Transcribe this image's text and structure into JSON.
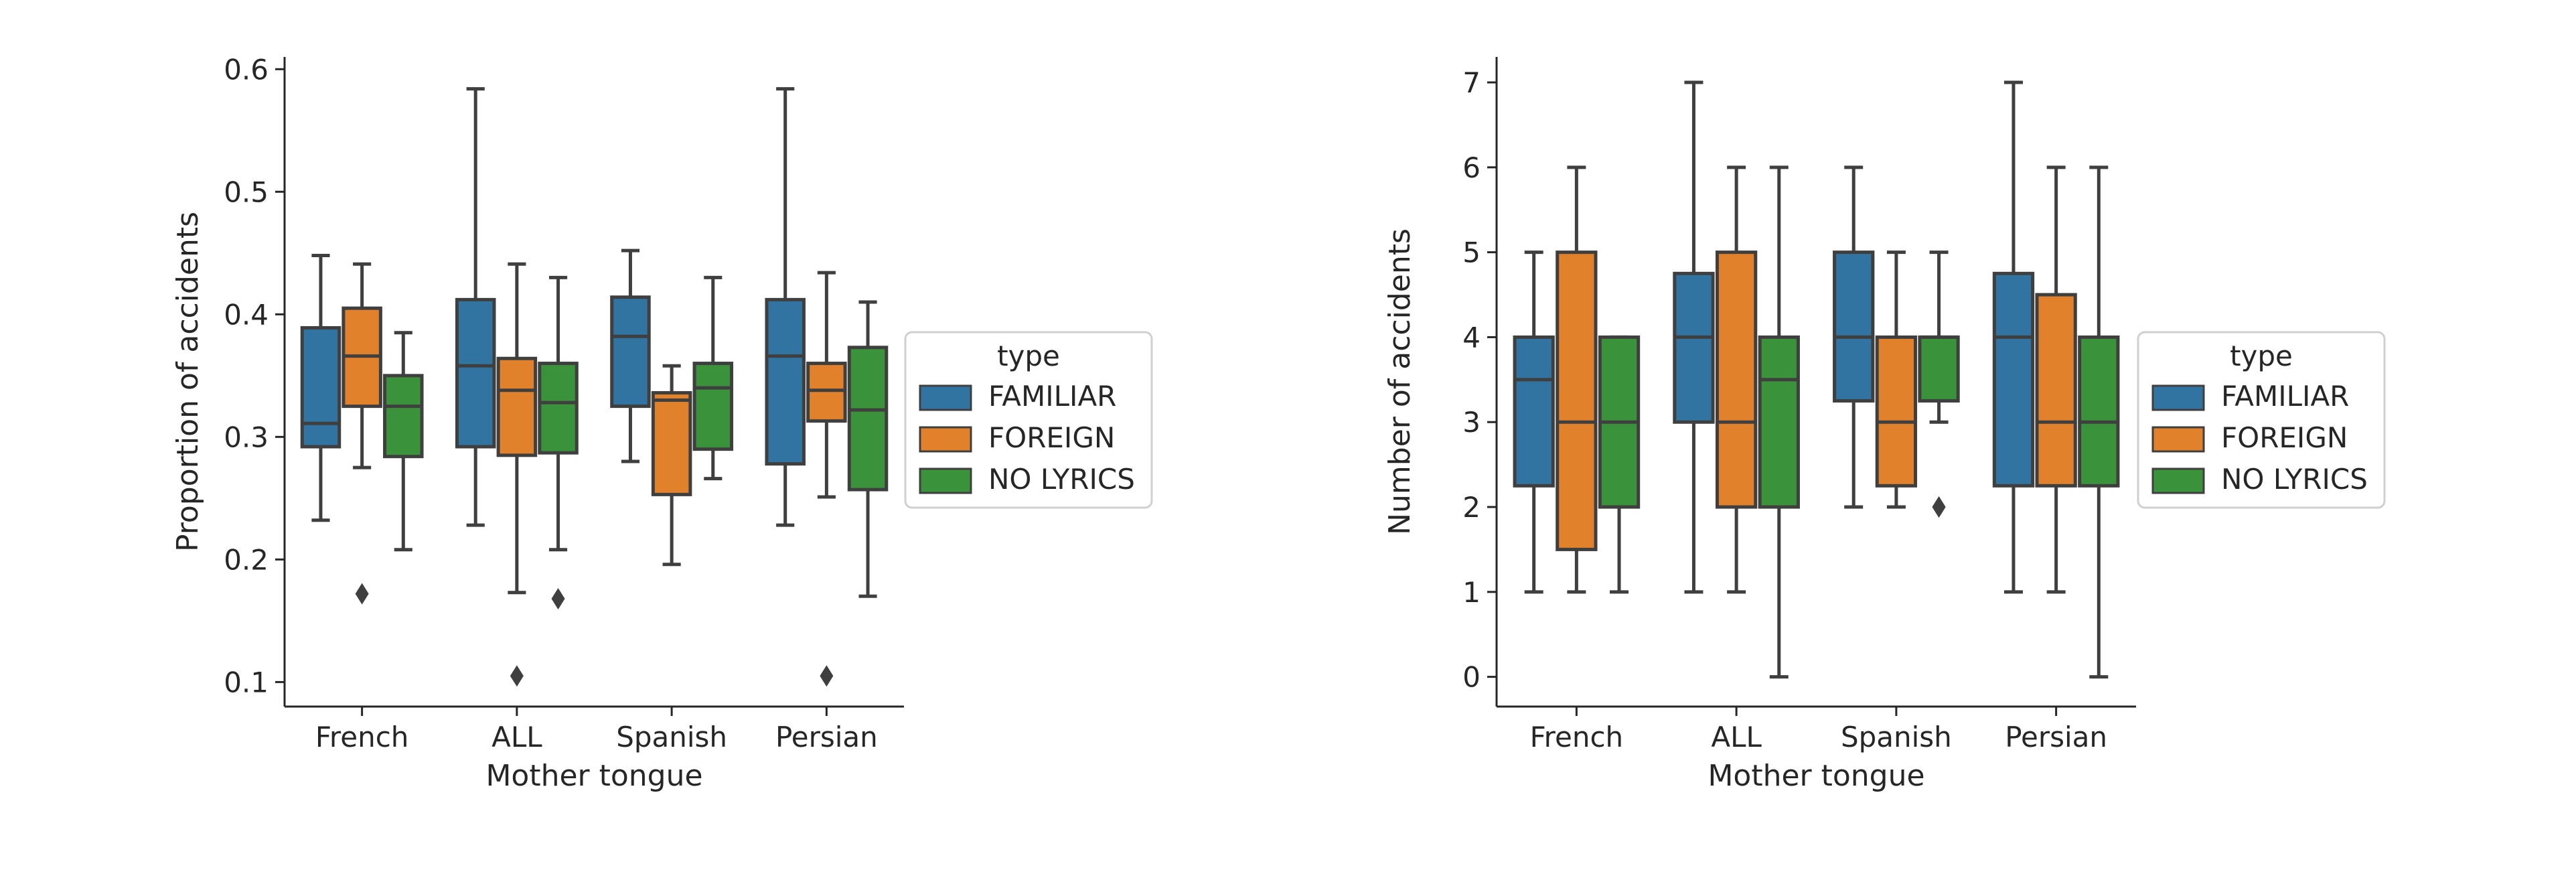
{
  "chart_data": [
    {
      "type": "box",
      "xlabel": "Mother tongue",
      "ylabel": "Proportion of accidents",
      "ylim": [
        0.08,
        0.61
      ],
      "yticks": [
        "0.1",
        "0.2",
        "0.3",
        "0.4",
        "0.5",
        "0.6"
      ],
      "ytick_values": [
        0.1,
        0.2,
        0.3,
        0.4,
        0.5,
        0.6
      ],
      "categories": [
        "French",
        "ALL",
        "Spanish",
        "Persian"
      ],
      "legend": {
        "title": "type",
        "position": "center-right"
      },
      "series": [
        {
          "name": "FAMILIAR",
          "color": "#3274a1",
          "boxes": [
            {
              "whislo": 0.232,
              "q1": 0.292,
              "med": 0.311,
              "q3": 0.389,
              "whishi": 0.448,
              "fliers": []
            },
            {
              "whislo": 0.228,
              "q1": 0.292,
              "med": 0.358,
              "q3": 0.412,
              "whishi": 0.584,
              "fliers": []
            },
            {
              "whislo": 0.28,
              "q1": 0.325,
              "med": 0.382,
              "q3": 0.414,
              "whishi": 0.452,
              "fliers": []
            },
            {
              "whislo": 0.228,
              "q1": 0.278,
              "med": 0.366,
              "q3": 0.412,
              "whishi": 0.584,
              "fliers": []
            }
          ]
        },
        {
          "name": "FOREIGN",
          "color": "#e1812c",
          "boxes": [
            {
              "whislo": 0.275,
              "q1": 0.325,
              "med": 0.366,
              "q3": 0.405,
              "whishi": 0.441,
              "fliers": [
                0.172
              ]
            },
            {
              "whislo": 0.173,
              "q1": 0.285,
              "med": 0.338,
              "q3": 0.364,
              "whishi": 0.441,
              "fliers": [
                0.105
              ]
            },
            {
              "whislo": 0.196,
              "q1": 0.253,
              "med": 0.33,
              "q3": 0.336,
              "whishi": 0.358,
              "fliers": []
            },
            {
              "whislo": 0.251,
              "q1": 0.313,
              "med": 0.338,
              "q3": 0.36,
              "whishi": 0.434,
              "fliers": [
                0.105
              ]
            }
          ]
        },
        {
          "name": "NO LYRICS",
          "color": "#3a923a",
          "boxes": [
            {
              "whislo": 0.208,
              "q1": 0.284,
              "med": 0.325,
              "q3": 0.35,
              "whishi": 0.385,
              "fliers": []
            },
            {
              "whislo": 0.208,
              "q1": 0.287,
              "med": 0.328,
              "q3": 0.36,
              "whishi": 0.43,
              "fliers": [
                0.168
              ]
            },
            {
              "whislo": 0.266,
              "q1": 0.29,
              "med": 0.34,
              "q3": 0.36,
              "whishi": 0.43,
              "fliers": []
            },
            {
              "whislo": 0.17,
              "q1": 0.257,
              "med": 0.322,
              "q3": 0.373,
              "whishi": 0.41,
              "fliers": []
            }
          ]
        }
      ]
    },
    {
      "type": "box",
      "xlabel": "Mother tongue",
      "ylabel": "Number of accidents",
      "ylim": [
        -0.35,
        7.3
      ],
      "yticks": [
        "0",
        "1",
        "2",
        "3",
        "4",
        "5",
        "6",
        "7"
      ],
      "ytick_values": [
        0,
        1,
        2,
        3,
        4,
        5,
        6,
        7
      ],
      "categories": [
        "French",
        "ALL",
        "Spanish",
        "Persian"
      ],
      "legend": {
        "title": "type",
        "position": "center-right"
      },
      "series": [
        {
          "name": "FAMILIAR",
          "color": "#3274a1",
          "boxes": [
            {
              "whislo": 1,
              "q1": 2.25,
              "med": 3.5,
              "q3": 4,
              "whishi": 5,
              "fliers": []
            },
            {
              "whislo": 1,
              "q1": 3,
              "med": 4,
              "q3": 4.75,
              "whishi": 7,
              "fliers": []
            },
            {
              "whislo": 2,
              "q1": 3.25,
              "med": 4,
              "q3": 5,
              "whishi": 6,
              "fliers": []
            },
            {
              "whislo": 1,
              "q1": 2.25,
              "med": 4,
              "q3": 4.75,
              "whishi": 7,
              "fliers": []
            }
          ]
        },
        {
          "name": "FOREIGN",
          "color": "#e1812c",
          "boxes": [
            {
              "whislo": 1,
              "q1": 1.5,
              "med": 3,
              "q3": 5,
              "whishi": 6,
              "fliers": []
            },
            {
              "whislo": 1,
              "q1": 2,
              "med": 3,
              "q3": 5,
              "whishi": 6,
              "fliers": []
            },
            {
              "whislo": 2,
              "q1": 2.25,
              "med": 3,
              "q3": 4,
              "whishi": 5,
              "fliers": []
            },
            {
              "whislo": 1,
              "q1": 2.25,
              "med": 3,
              "q3": 4.5,
              "whishi": 6,
              "fliers": []
            }
          ]
        },
        {
          "name": "NO LYRICS",
          "color": "#3a923a",
          "boxes": [
            {
              "whislo": 1,
              "q1": 2,
              "med": 3,
              "q3": 4,
              "whishi": 4,
              "fliers": []
            },
            {
              "whislo": 0,
              "q1": 2,
              "med": 3.5,
              "q3": 4,
              "whishi": 6,
              "fliers": []
            },
            {
              "whislo": 3,
              "q1": 3.25,
              "med": 4,
              "q3": 4,
              "whishi": 5,
              "fliers": [
                2,
                2
              ]
            },
            {
              "whislo": 0,
              "q1": 2.25,
              "med": 3,
              "q3": 4,
              "whishi": 6,
              "fliers": []
            }
          ]
        }
      ]
    }
  ]
}
